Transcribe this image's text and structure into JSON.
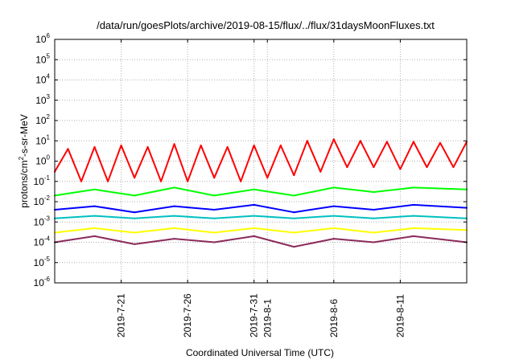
{
  "chart_data": {
    "type": "line",
    "title": "/data/run/goesPlots/archive/2019-08-15/flux/../flux/31daysMoonFluxes.txt",
    "xlabel": "Coordinated Universal Time (UTC)",
    "ylabel": {
      "prefix": "protons/cm",
      "superscript": "2",
      "suffix": "-s-sr-MeV"
    },
    "y_scale": "log",
    "ylim": [
      1e-06,
      1000000.0
    ],
    "y_ticks": [
      {
        "base": "10",
        "exp": "-6"
      },
      {
        "base": "10",
        "exp": "-5"
      },
      {
        "base": "10",
        "exp": "-4"
      },
      {
        "base": "10",
        "exp": "-3"
      },
      {
        "base": "10",
        "exp": "-2"
      },
      {
        "base": "10",
        "exp": "-1"
      },
      {
        "base": "10",
        "exp": "0"
      },
      {
        "base": "10",
        "exp": "1"
      },
      {
        "base": "10",
        "exp": "2"
      },
      {
        "base": "10",
        "exp": "3"
      },
      {
        "base": "10",
        "exp": "4"
      },
      {
        "base": "10",
        "exp": "5"
      },
      {
        "base": "10",
        "exp": "6"
      }
    ],
    "xlim": [
      "2019-07-16",
      "2019-08-16"
    ],
    "x_ticks": [
      "2019-7-21",
      "2019-7-26",
      "2019-7-31",
      "2019-8-1",
      "2019-8-6",
      "2019-8-11"
    ],
    "grid": true,
    "series": [
      {
        "color": "#ff0000",
        "x": [
          "2019-07-16",
          "2019-07-17",
          "2019-07-18",
          "2019-07-19",
          "2019-07-20",
          "2019-07-21",
          "2019-07-22",
          "2019-07-23",
          "2019-07-24",
          "2019-07-25",
          "2019-07-26",
          "2019-07-27",
          "2019-07-28",
          "2019-07-29",
          "2019-07-30",
          "2019-07-31",
          "2019-08-01",
          "2019-08-02",
          "2019-08-03",
          "2019-08-04",
          "2019-08-05",
          "2019-08-06",
          "2019-08-07",
          "2019-08-08",
          "2019-08-09",
          "2019-08-10",
          "2019-08-11",
          "2019-08-12",
          "2019-08-13",
          "2019-08-14",
          "2019-08-15",
          "2019-08-16"
        ],
        "y": [
          0.3,
          4,
          0.1,
          5,
          0.1,
          6,
          0.15,
          5,
          0.1,
          7,
          0.1,
          6,
          0.15,
          5,
          0.1,
          6,
          0.15,
          6,
          0.2,
          10,
          0.3,
          12,
          0.5,
          10,
          0.5,
          9,
          0.4,
          9,
          0.5,
          8,
          0.5,
          9
        ]
      },
      {
        "color": "#00ff00",
        "x": [
          "2019-07-16",
          "2019-07-19",
          "2019-07-22",
          "2019-07-25",
          "2019-07-28",
          "2019-07-31",
          "2019-08-03",
          "2019-08-06",
          "2019-08-09",
          "2019-08-12",
          "2019-08-16"
        ],
        "y": [
          0.02,
          0.04,
          0.02,
          0.05,
          0.02,
          0.04,
          0.02,
          0.05,
          0.03,
          0.05,
          0.04
        ]
      },
      {
        "color": "#0000ff",
        "x": [
          "2019-07-16",
          "2019-07-19",
          "2019-07-22",
          "2019-07-25",
          "2019-07-28",
          "2019-07-31",
          "2019-08-03",
          "2019-08-06",
          "2019-08-09",
          "2019-08-12",
          "2019-08-16"
        ],
        "y": [
          0.004,
          0.006,
          0.003,
          0.006,
          0.004,
          0.007,
          0.003,
          0.006,
          0.004,
          0.007,
          0.005
        ]
      },
      {
        "color": "#00c0c0",
        "x": [
          "2019-07-16",
          "2019-07-19",
          "2019-07-22",
          "2019-07-25",
          "2019-07-28",
          "2019-07-31",
          "2019-08-03",
          "2019-08-06",
          "2019-08-09",
          "2019-08-12",
          "2019-08-16"
        ],
        "y": [
          0.0015,
          0.002,
          0.0015,
          0.002,
          0.0015,
          0.002,
          0.0015,
          0.002,
          0.0015,
          0.002,
          0.0015
        ]
      },
      {
        "color": "#ffff00",
        "x": [
          "2019-07-16",
          "2019-07-19",
          "2019-07-22",
          "2019-07-25",
          "2019-07-28",
          "2019-07-31",
          "2019-08-03",
          "2019-08-06",
          "2019-08-09",
          "2019-08-12",
          "2019-08-16"
        ],
        "y": [
          0.0003,
          0.0005,
          0.0003,
          0.0005,
          0.0003,
          0.0005,
          0.0003,
          0.0005,
          0.0003,
          0.0005,
          0.0004
        ]
      },
      {
        "color": "#8b2a5a",
        "x": [
          "2019-07-16",
          "2019-07-19",
          "2019-07-22",
          "2019-07-25",
          "2019-07-28",
          "2019-07-31",
          "2019-08-03",
          "2019-08-06",
          "2019-08-09",
          "2019-08-12",
          "2019-08-16"
        ],
        "y": [
          0.0001,
          0.0002,
          8e-05,
          0.00015,
          0.0001,
          0.0002,
          6e-05,
          0.00015,
          0.0001,
          0.0002,
          0.0001
        ]
      }
    ]
  }
}
